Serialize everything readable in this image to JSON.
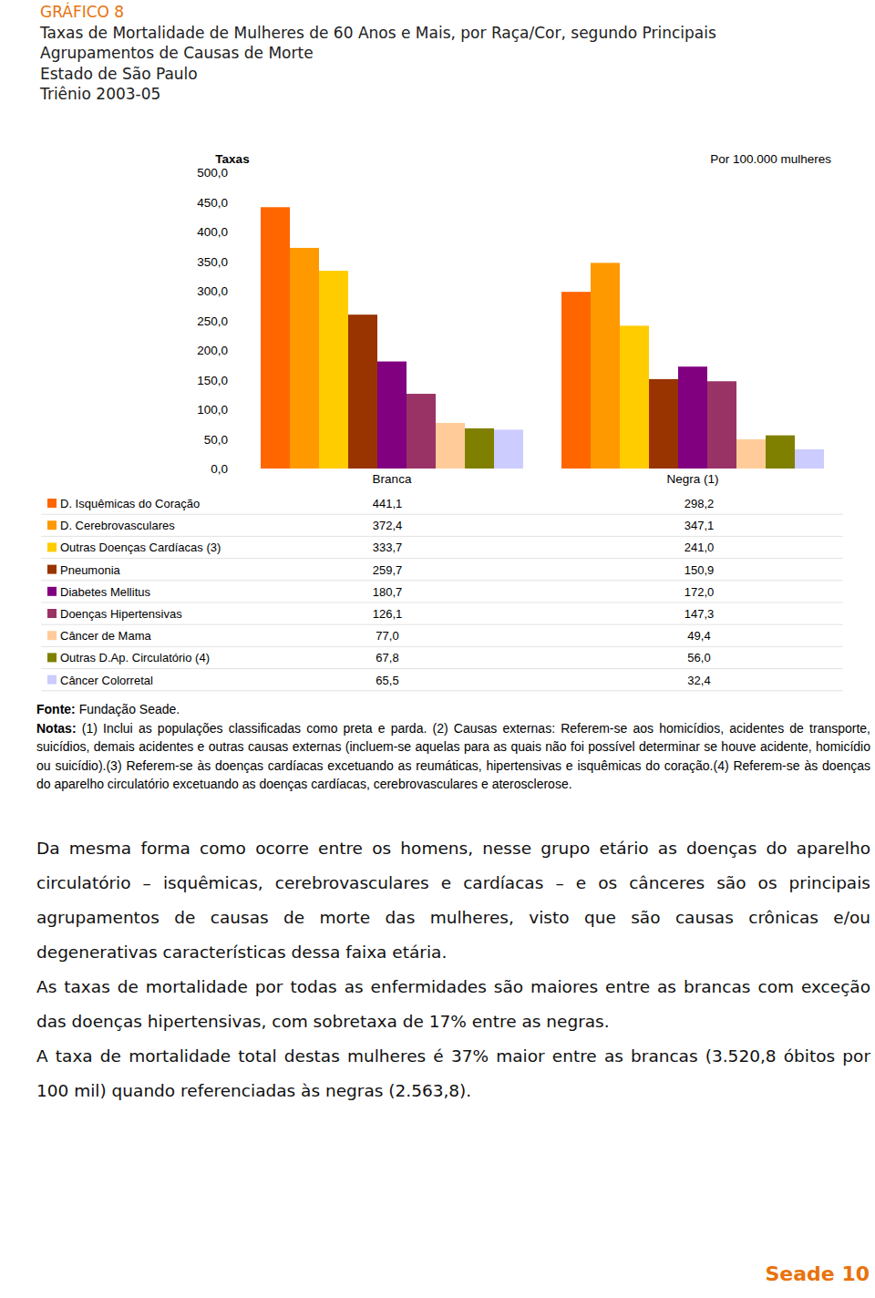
{
  "chart_data": {
    "type": "bar",
    "title": "Taxas de Mortalidade de Mulheres de 60 Anos e Mais, por Raça/Cor, segundo Principais Agrupamentos de Causas de Morte",
    "subtitle": [
      "Estado de São Paulo",
      "Triênio 2003-05"
    ],
    "y_label": "Taxas",
    "annotation": "Por 100.000 mulheres",
    "categories": [
      "Branca",
      "Negra (1)"
    ],
    "series": [
      {
        "name": "D. Isquêmicas do Coração",
        "color": "#ff6600",
        "values": [
          441.1,
          298.2
        ],
        "value_labels": [
          "441,1",
          "298,2"
        ]
      },
      {
        "name": "D. Cerebrovasculares",
        "color": "#ff9900",
        "values": [
          372.4,
          347.1
        ],
        "value_labels": [
          "372,4",
          "347,1"
        ]
      },
      {
        "name": "Outras Doenças Cardíacas (3)",
        "color": "#ffcc00",
        "values": [
          333.7,
          241.0
        ],
        "value_labels": [
          "333,7",
          "241,0"
        ]
      },
      {
        "name": "Pneumonia",
        "color": "#993300",
        "values": [
          259.7,
          150.9
        ],
        "value_labels": [
          "259,7",
          "150,9"
        ]
      },
      {
        "name": "Diabetes Mellitus",
        "color": "#800080",
        "values": [
          180.7,
          172.0
        ],
        "value_labels": [
          "180,7",
          "172,0"
        ]
      },
      {
        "name": "Doenças Hipertensivas",
        "color": "#993366",
        "values": [
          126.1,
          147.3
        ],
        "value_labels": [
          "126,1",
          "147,3"
        ]
      },
      {
        "name": "Câncer de Mama",
        "color": "#ffcc99",
        "values": [
          77.0,
          49.4
        ],
        "value_labels": [
          "77,0",
          "49,4"
        ]
      },
      {
        "name": "Outras D.Ap. Circulatório (4)",
        "color": "#808000",
        "values": [
          67.8,
          56.0
        ],
        "value_labels": [
          "67,8",
          "56,0"
        ]
      },
      {
        "name": "Câncer Colorretal",
        "color": "#ccccff",
        "values": [
          65.5,
          32.4
        ],
        "value_labels": [
          "65,5",
          "32,4"
        ]
      }
    ],
    "ylim": [
      0,
      500
    ],
    "yticks": [
      {
        "value": 0,
        "label": "0,0"
      },
      {
        "value": 50,
        "label": "50,0"
      },
      {
        "value": 100,
        "label": "100,0"
      },
      {
        "value": 150,
        "label": "150,0"
      },
      {
        "value": 200,
        "label": "200,0"
      },
      {
        "value": 250,
        "label": "250,0"
      },
      {
        "value": 300,
        "label": "300,0"
      },
      {
        "value": 350,
        "label": "350,0"
      },
      {
        "value": 400,
        "label": "400,0"
      },
      {
        "value": 450,
        "label": "450,0"
      },
      {
        "value": 500,
        "label": "500,0"
      }
    ],
    "grid": false
  },
  "document": {
    "figure_label": "GRÁFICO 8",
    "source_label": "Fonte:",
    "source": "Fundação Seade.",
    "notes_label": "Notas:",
    "notes": "(1) Inclui as populações classificadas como preta e parda.  (2) Causas externas: Referem-se aos homicídios, acidentes de transporte, suicídios, demais acidentes e outras causas externas (incluem-se aquelas para as quais não foi possível determinar se houve acidente, homicídio ou suicídio).(3) Referem-se às doenças cardíacas excetuando as reumáticas, hipertensivas e isquêmicas do coração.(4) Referem-se às doenças do aparelho circulatório excetuando as doenças cardíacas, cerebrovasculares e aterosclerose.",
    "paragraphs": [
      "Da mesma forma como ocorre entre os homens, nesse grupo etário as doenças do aparelho circulatório – isquêmicas, cerebrovasculares e cardíacas – e os cânceres são os principais agrupamentos de causas de morte das mulheres, visto que são causas crônicas e/ou degenerativas características dessa faixa etária.",
      "As taxas de mortalidade por todas as enfermidades são maiores entre as brancas com exceção das doenças hipertensivas, com sobretaxa de 17% entre as negras.",
      "A taxa de mortalidade total destas mulheres é 37% maior entre as brancas (3.520,8 óbitos por 100 mil) quando referenciadas às negras (2.563,8)."
    ],
    "footer_brand": "Seade",
    "page_number": "10"
  }
}
